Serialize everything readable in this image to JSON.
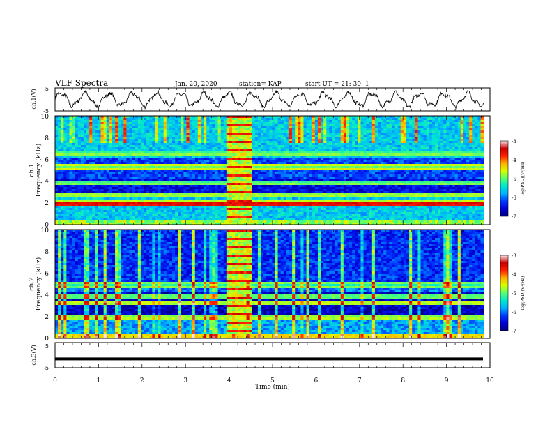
{
  "header": {
    "title": "VLF Spectra",
    "date": "Jan. 20, 2020",
    "station": "station= KAP",
    "start": "start  UT =   21: 30: 1"
  },
  "chart_data": [
    {
      "type": "line",
      "panel": "ch1-waveform",
      "ylabel": "ch.1(V)",
      "ylim": [
        -5,
        5
      ],
      "yticks": [
        "5",
        "-5"
      ],
      "xlim": [
        0,
        10
      ],
      "oscillation": {
        "amplitude_v": 2.6,
        "approx_period_min": 0.55
      }
    },
    {
      "type": "heatmap",
      "panel": "ch1-spectrogram",
      "ylabel": "ch.1\nFrequency  (kHz)",
      "ylim": [
        0,
        10
      ],
      "yticks": [
        "0",
        "2",
        "4",
        "6",
        "8",
        "10"
      ],
      "xlim": [
        0,
        10
      ],
      "colorbar": {
        "label": "log(PSD)(V²/Hz)",
        "range": [
          -7,
          -3
        ],
        "ticks": [
          "-3",
          "-4",
          "-5",
          "-6",
          "-7"
        ]
      },
      "bright_interval_min": [
        3.95,
        4.55
      ],
      "bands_khz": [
        {
          "f": 1.9,
          "level": -3.8
        },
        {
          "f": 2.15,
          "level": -4.8
        },
        {
          "f": 2.7,
          "level": -5.0
        },
        {
          "f": 3.9,
          "level": -5.2
        },
        {
          "f": 5.3,
          "level": -5.0
        },
        {
          "f": 6.6,
          "level": -5.2
        }
      ]
    },
    {
      "type": "heatmap",
      "panel": "ch2-spectrogram",
      "ylabel": "ch.2\nFrequency  (kHz)",
      "ylim": [
        0,
        10
      ],
      "yticks": [
        "0",
        "2",
        "4",
        "6",
        "8",
        "10"
      ],
      "xlim": [
        0,
        10
      ],
      "colorbar": {
        "label": "log(PSD)(V²/Hz)",
        "range": [
          -7,
          -3
        ],
        "ticks": [
          "-3",
          "-4",
          "-5",
          "-6",
          "-7"
        ]
      },
      "bright_interval_min": [
        3.95,
        4.55
      ],
      "bands_khz": [
        {
          "f": 1.95,
          "level": -5.0
        },
        {
          "f": 3.25,
          "level": -4.9
        },
        {
          "f": 3.85,
          "level": -5.2
        },
        {
          "f": 4.9,
          "level": -5.3
        },
        {
          "f": 0.2,
          "level": -4.6
        }
      ]
    },
    {
      "type": "line",
      "panel": "ch3-waveform",
      "ylabel": "ch.3(V)",
      "ylim": [
        -5,
        5
      ],
      "yticks": [
        "5",
        "-5"
      ],
      "xlim": [
        0,
        10
      ],
      "constant_value_v": -1.5
    }
  ],
  "xaxis": {
    "label": "Time  (min)",
    "ticks": [
      "0",
      "1",
      "2",
      "3",
      "4",
      "5",
      "6",
      "7",
      "8",
      "9",
      "10"
    ]
  },
  "colors": {
    "background": "#ffffff",
    "frame": "#000000",
    "colormap": [
      "#00007a",
      "#0000d8",
      "#0038ff",
      "#00b0ff",
      "#00e6d0",
      "#55ff70",
      "#d8ff00",
      "#ffb000",
      "#ff2000",
      "#c80000",
      "#ffe6e6"
    ]
  }
}
